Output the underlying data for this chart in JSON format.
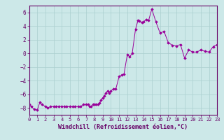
{
  "title": "",
  "xlabel": "Windchill (Refroidissement éolien,°C)",
  "ylabel": "",
  "background_color": "#cce8e8",
  "line_color": "#990099",
  "marker_color": "#990099",
  "grid_color": "#aacfcf",
  "ylim": [
    -9,
    7
  ],
  "xlim": [
    0,
    23
  ],
  "yticks": [
    -8,
    -6,
    -4,
    -2,
    0,
    2,
    4,
    6
  ],
  "xticks": [
    0,
    1,
    2,
    3,
    4,
    5,
    6,
    7,
    8,
    9,
    10,
    11,
    12,
    13,
    14,
    15,
    16,
    17,
    18,
    19,
    20,
    21,
    22,
    23
  ],
  "x": [
    0,
    0.3,
    0.6,
    1.0,
    1.3,
    1.6,
    2.0,
    2.3,
    2.6,
    3.0,
    3.3,
    3.6,
    4.0,
    4.3,
    4.6,
    5.0,
    5.3,
    5.6,
    6.0,
    6.3,
    6.6,
    7.0,
    7.2,
    7.4,
    7.6,
    7.8,
    8.0,
    8.2,
    8.4,
    8.6,
    8.8,
    9.0,
    9.2,
    9.4,
    9.6,
    9.8,
    10.0,
    10.3,
    10.6,
    11.0,
    11.3,
    11.6,
    12.0,
    12.3,
    12.6,
    13.0,
    13.3,
    13.5,
    13.8,
    14.0,
    14.3,
    14.6,
    15.0,
    15.5,
    16.0,
    16.5,
    17.0,
    17.5,
    18.0,
    18.5,
    19.0,
    19.5,
    20.0,
    20.5,
    21.0,
    21.5,
    22.0,
    22.5,
    23.0
  ],
  "y": [
    -7.5,
    -7.8,
    -8.2,
    -8.3,
    -7.2,
    -7.5,
    -7.8,
    -8.0,
    -7.8,
    -7.8,
    -7.8,
    -7.8,
    -7.8,
    -7.8,
    -7.8,
    -7.8,
    -7.8,
    -7.8,
    -7.8,
    -7.8,
    -7.5,
    -7.5,
    -7.5,
    -7.8,
    -7.8,
    -7.5,
    -7.5,
    -7.5,
    -7.5,
    -7.3,
    -6.8,
    -6.5,
    -6.2,
    -5.8,
    -5.5,
    -5.8,
    -5.5,
    -5.2,
    -5.2,
    -3.4,
    -3.2,
    -3.0,
    -0.2,
    -0.5,
    0.0,
    3.5,
    4.8,
    4.7,
    4.5,
    4.6,
    5.0,
    4.8,
    6.5,
    4.6,
    3.0,
    3.2,
    1.6,
    1.2,
    1.1,
    1.3,
    -0.7,
    0.5,
    0.2,
    0.2,
    0.5,
    0.3,
    0.2,
    1.0,
    1.3
  ]
}
